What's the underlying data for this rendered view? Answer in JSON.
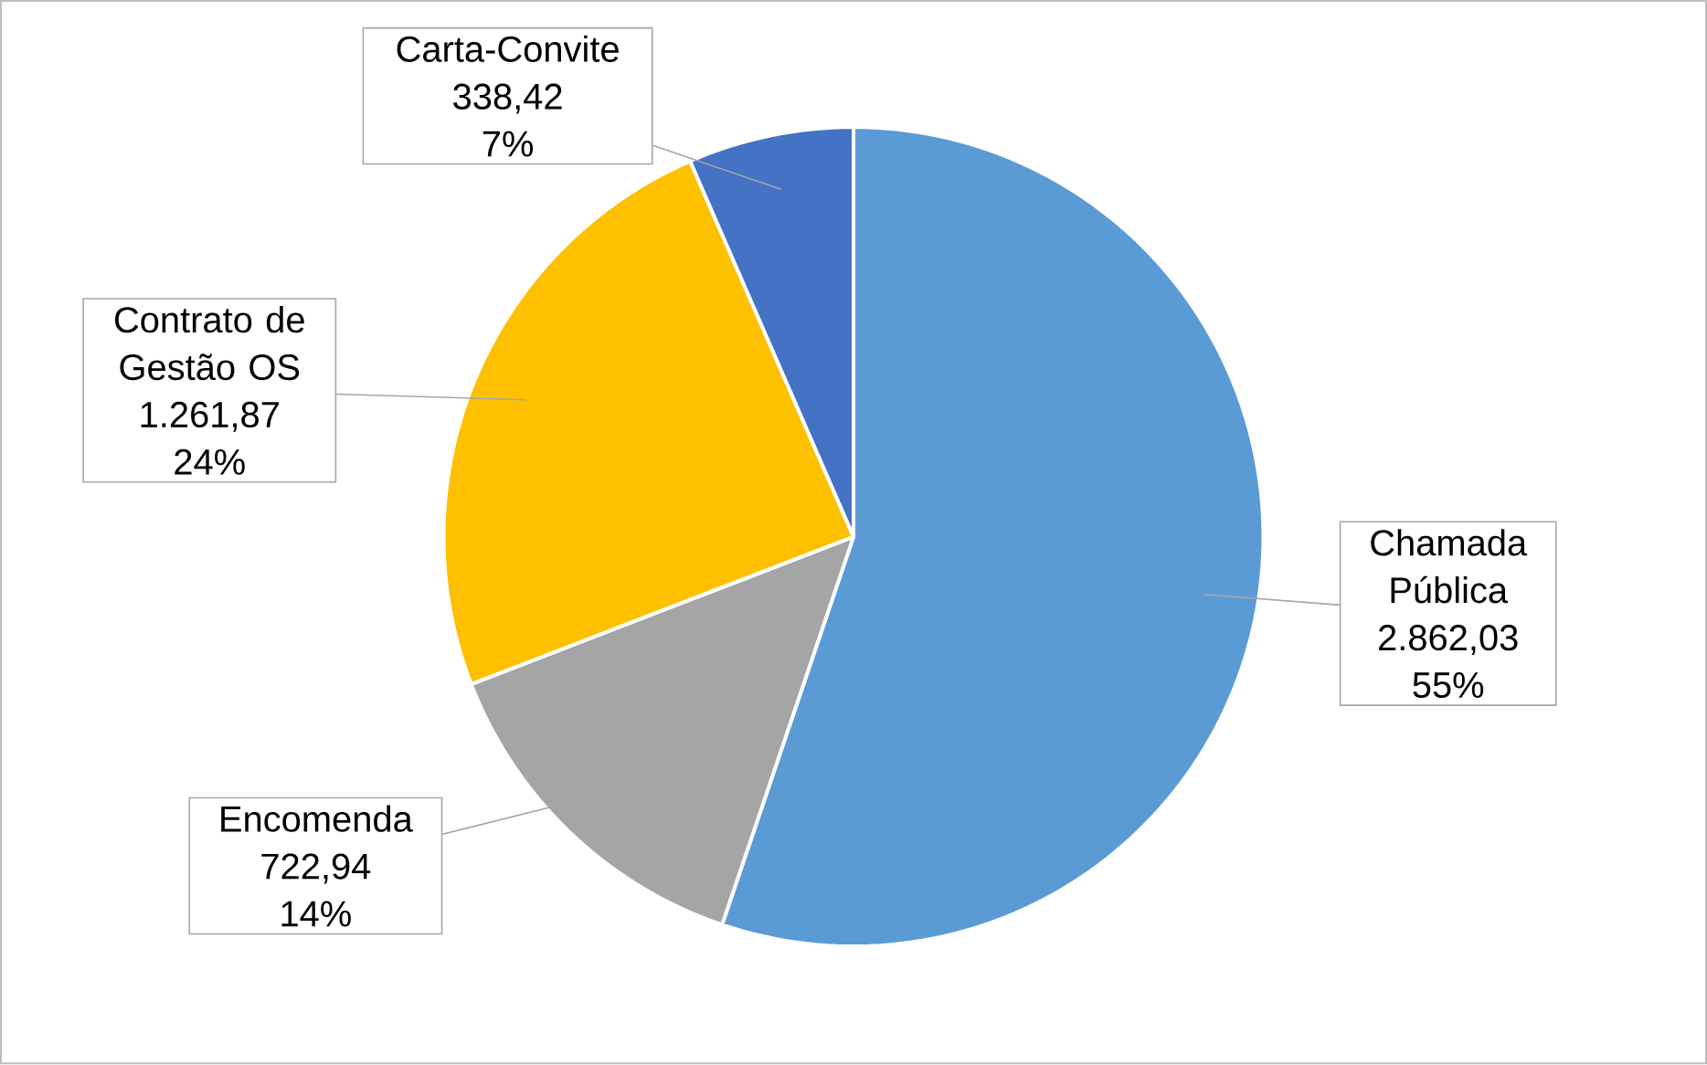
{
  "chart_data": {
    "type": "pie",
    "categories": [
      "Chamada Pública",
      "Encomenda",
      "Contrato de Gestão OS",
      "Carta-Convite"
    ],
    "values": [
      2862.03,
      722.94,
      1261.87,
      338.42
    ],
    "value_labels": [
      "2.862,03",
      "722,94",
      "1.261,87",
      "338,42"
    ],
    "annotations": [
      "55%",
      "14%",
      "24%",
      "7%"
    ],
    "colors": [
      "#5b9bd5",
      "#a5a5a5",
      "#ffc000",
      "#4472c4"
    ]
  }
}
